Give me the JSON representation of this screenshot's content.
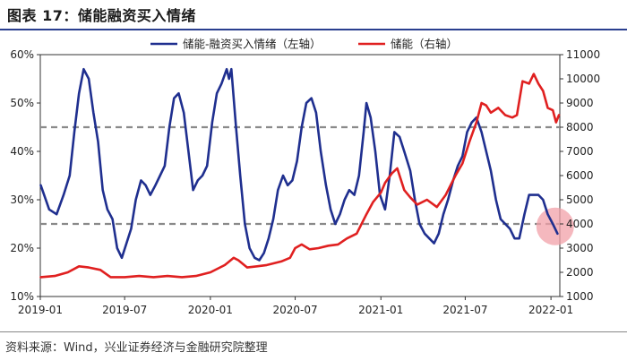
{
  "header": {
    "title": "图表 17：储能融资买入情绪"
  },
  "footer": {
    "source": "资料来源：Wind，兴业证券经济与金融研究院整理"
  },
  "chart_data": {
    "type": "line",
    "x_ticks": [
      "2019-01",
      "2019-07",
      "2020-01",
      "2020-07",
      "2021-01",
      "2021-07",
      "2022-01"
    ],
    "left_axis": {
      "ticks": [
        "10%",
        "20%",
        "30%",
        "40%",
        "50%",
        "60%"
      ],
      "range": [
        10,
        60
      ]
    },
    "right_axis": {
      "ticks": [
        "1000",
        "2000",
        "3000",
        "4000",
        "5000",
        "6000",
        "7000",
        "8000",
        "9000",
        "10000",
        "11000"
      ],
      "range": [
        1000,
        11000
      ]
    },
    "reference_lines": [
      45,
      25
    ],
    "highlight_circle": {
      "x": "2022-01",
      "y": 24.5
    },
    "grid": false,
    "legend": "top-center",
    "colors": {
      "left_series": "#1f2f8f",
      "right_series": "#e02020",
      "reference": "#8a8a8a",
      "highlight": "#f2a0a8"
    },
    "series": [
      {
        "name": "储能-融资买入情绪（左轴）",
        "axis": "left",
        "points": [
          [
            "2019-01-02",
            33
          ],
          [
            "2019-01-20",
            28
          ],
          [
            "2019-02-05",
            27
          ],
          [
            "2019-02-20",
            31
          ],
          [
            "2019-03-05",
            35
          ],
          [
            "2019-03-15",
            44
          ],
          [
            "2019-03-25",
            52
          ],
          [
            "2019-04-04",
            57
          ],
          [
            "2019-04-15",
            55
          ],
          [
            "2019-04-25",
            48
          ],
          [
            "2019-05-05",
            42
          ],
          [
            "2019-05-15",
            32
          ],
          [
            "2019-05-25",
            28
          ],
          [
            "2019-06-05",
            26
          ],
          [
            "2019-06-15",
            20
          ],
          [
            "2019-06-25",
            18
          ],
          [
            "2019-07-05",
            21
          ],
          [
            "2019-07-15",
            24
          ],
          [
            "2019-07-25",
            30
          ],
          [
            "2019-08-05",
            34
          ],
          [
            "2019-08-15",
            33
          ],
          [
            "2019-08-25",
            31
          ],
          [
            "2019-09-05",
            33
          ],
          [
            "2019-09-15",
            35
          ],
          [
            "2019-09-25",
            37
          ],
          [
            "2019-10-05",
            45
          ],
          [
            "2019-10-15",
            51
          ],
          [
            "2019-10-25",
            52
          ],
          [
            "2019-11-05",
            48
          ],
          [
            "2019-11-15",
            40
          ],
          [
            "2019-11-25",
            32
          ],
          [
            "2019-12-05",
            34
          ],
          [
            "2019-12-15",
            35
          ],
          [
            "2019-12-25",
            37
          ],
          [
            "2020-01-05",
            46
          ],
          [
            "2020-01-15",
            52
          ],
          [
            "2020-01-25",
            54
          ],
          [
            "2020-02-05",
            57
          ],
          [
            "2020-02-10",
            55
          ],
          [
            "2020-02-15",
            57
          ],
          [
            "2020-02-25",
            45
          ],
          [
            "2020-03-05",
            35
          ],
          [
            "2020-03-15",
            25
          ],
          [
            "2020-03-25",
            20
          ],
          [
            "2020-04-05",
            18
          ],
          [
            "2020-04-15",
            17.5
          ],
          [
            "2020-04-25",
            19
          ],
          [
            "2020-05-05",
            22
          ],
          [
            "2020-05-15",
            26
          ],
          [
            "2020-05-25",
            32
          ],
          [
            "2020-06-05",
            35
          ],
          [
            "2020-06-15",
            33
          ],
          [
            "2020-06-25",
            34
          ],
          [
            "2020-07-05",
            38
          ],
          [
            "2020-07-15",
            45
          ],
          [
            "2020-07-25",
            50
          ],
          [
            "2020-08-05",
            51
          ],
          [
            "2020-08-15",
            48
          ],
          [
            "2020-08-25",
            40
          ],
          [
            "2020-09-05",
            33
          ],
          [
            "2020-09-15",
            28
          ],
          [
            "2020-09-25",
            25
          ],
          [
            "2020-10-05",
            27
          ],
          [
            "2020-10-15",
            30
          ],
          [
            "2020-10-25",
            32
          ],
          [
            "2020-11-05",
            31
          ],
          [
            "2020-11-15",
            35
          ],
          [
            "2020-11-25",
            44
          ],
          [
            "2020-12-01",
            50
          ],
          [
            "2020-12-10",
            47
          ],
          [
            "2020-12-20",
            40
          ],
          [
            "2020-12-30",
            31
          ],
          [
            "2021-01-10",
            28
          ],
          [
            "2021-01-20",
            35
          ],
          [
            "2021-01-30",
            44
          ],
          [
            "2021-02-10",
            43
          ],
          [
            "2021-02-20",
            40
          ],
          [
            "2021-03-05",
            36
          ],
          [
            "2021-03-15",
            30
          ],
          [
            "2021-03-25",
            25
          ],
          [
            "2021-04-05",
            23
          ],
          [
            "2021-04-15",
            22
          ],
          [
            "2021-04-25",
            21
          ],
          [
            "2021-05-05",
            23
          ],
          [
            "2021-05-15",
            27
          ],
          [
            "2021-05-25",
            30
          ],
          [
            "2021-06-05",
            34
          ],
          [
            "2021-06-15",
            37
          ],
          [
            "2021-06-25",
            39
          ],
          [
            "2021-07-05",
            44
          ],
          [
            "2021-07-15",
            46
          ],
          [
            "2021-07-25",
            47
          ],
          [
            "2021-08-05",
            44
          ],
          [
            "2021-08-15",
            40
          ],
          [
            "2021-08-25",
            36
          ],
          [
            "2021-09-05",
            30
          ],
          [
            "2021-09-15",
            26
          ],
          [
            "2021-09-25",
            25
          ],
          [
            "2021-10-05",
            24
          ],
          [
            "2021-10-15",
            22
          ],
          [
            "2021-10-25",
            22
          ],
          [
            "2021-11-05",
            27
          ],
          [
            "2021-11-15",
            31
          ],
          [
            "2021-11-25",
            31
          ],
          [
            "2021-12-05",
            31
          ],
          [
            "2021-12-15",
            30
          ],
          [
            "2021-12-25",
            27
          ],
          [
            "2022-01-05",
            25
          ],
          [
            "2022-01-15",
            23
          ]
        ]
      },
      {
        "name": "储能（右轴）",
        "axis": "right",
        "points": [
          [
            "2019-01-02",
            1800
          ],
          [
            "2019-02-01",
            1850
          ],
          [
            "2019-03-01",
            2000
          ],
          [
            "2019-03-25",
            2250
          ],
          [
            "2019-04-15",
            2200
          ],
          [
            "2019-05-10",
            2100
          ],
          [
            "2019-06-01",
            1800
          ],
          [
            "2019-07-01",
            1800
          ],
          [
            "2019-08-01",
            1850
          ],
          [
            "2019-09-01",
            1800
          ],
          [
            "2019-10-01",
            1850
          ],
          [
            "2019-11-01",
            1800
          ],
          [
            "2019-12-01",
            1850
          ],
          [
            "2020-01-01",
            2000
          ],
          [
            "2020-02-01",
            2300
          ],
          [
            "2020-02-20",
            2600
          ],
          [
            "2020-03-01",
            2500
          ],
          [
            "2020-03-20",
            2200
          ],
          [
            "2020-04-10",
            2250
          ],
          [
            "2020-05-01",
            2300
          ],
          [
            "2020-06-01",
            2450
          ],
          [
            "2020-06-20",
            2600
          ],
          [
            "2020-07-01",
            3000
          ],
          [
            "2020-07-15",
            3150
          ],
          [
            "2020-08-01",
            2950
          ],
          [
            "2020-08-20",
            3000
          ],
          [
            "2020-09-10",
            3100
          ],
          [
            "2020-10-01",
            3150
          ],
          [
            "2020-10-20",
            3400
          ],
          [
            "2020-11-10",
            3600
          ],
          [
            "2020-12-01",
            4400
          ],
          [
            "2020-12-15",
            4900
          ],
          [
            "2021-01-01",
            5300
          ],
          [
            "2021-01-10",
            5700
          ],
          [
            "2021-01-25",
            6100
          ],
          [
            "2021-02-05",
            6300
          ],
          [
            "2021-02-20",
            5400
          ],
          [
            "2021-03-05",
            5100
          ],
          [
            "2021-03-20",
            4800
          ],
          [
            "2021-04-10",
            5000
          ],
          [
            "2021-05-01",
            4700
          ],
          [
            "2021-05-20",
            5200
          ],
          [
            "2021-06-10",
            6000
          ],
          [
            "2021-06-25",
            6500
          ],
          [
            "2021-07-10",
            7400
          ],
          [
            "2021-07-25",
            8200
          ],
          [
            "2021-08-05",
            9000
          ],
          [
            "2021-08-15",
            8900
          ],
          [
            "2021-08-25",
            8600
          ],
          [
            "2021-09-10",
            8800
          ],
          [
            "2021-09-25",
            8500
          ],
          [
            "2021-10-10",
            8400
          ],
          [
            "2021-10-20",
            8500
          ],
          [
            "2021-11-01",
            9900
          ],
          [
            "2021-11-15",
            9800
          ],
          [
            "2021-11-25",
            10200
          ],
          [
            "2021-12-05",
            9800
          ],
          [
            "2021-12-15",
            9500
          ],
          [
            "2021-12-25",
            8800
          ],
          [
            "2022-01-05",
            8700
          ],
          [
            "2022-01-12",
            8200
          ],
          [
            "2022-01-18",
            8500
          ]
        ]
      }
    ]
  }
}
